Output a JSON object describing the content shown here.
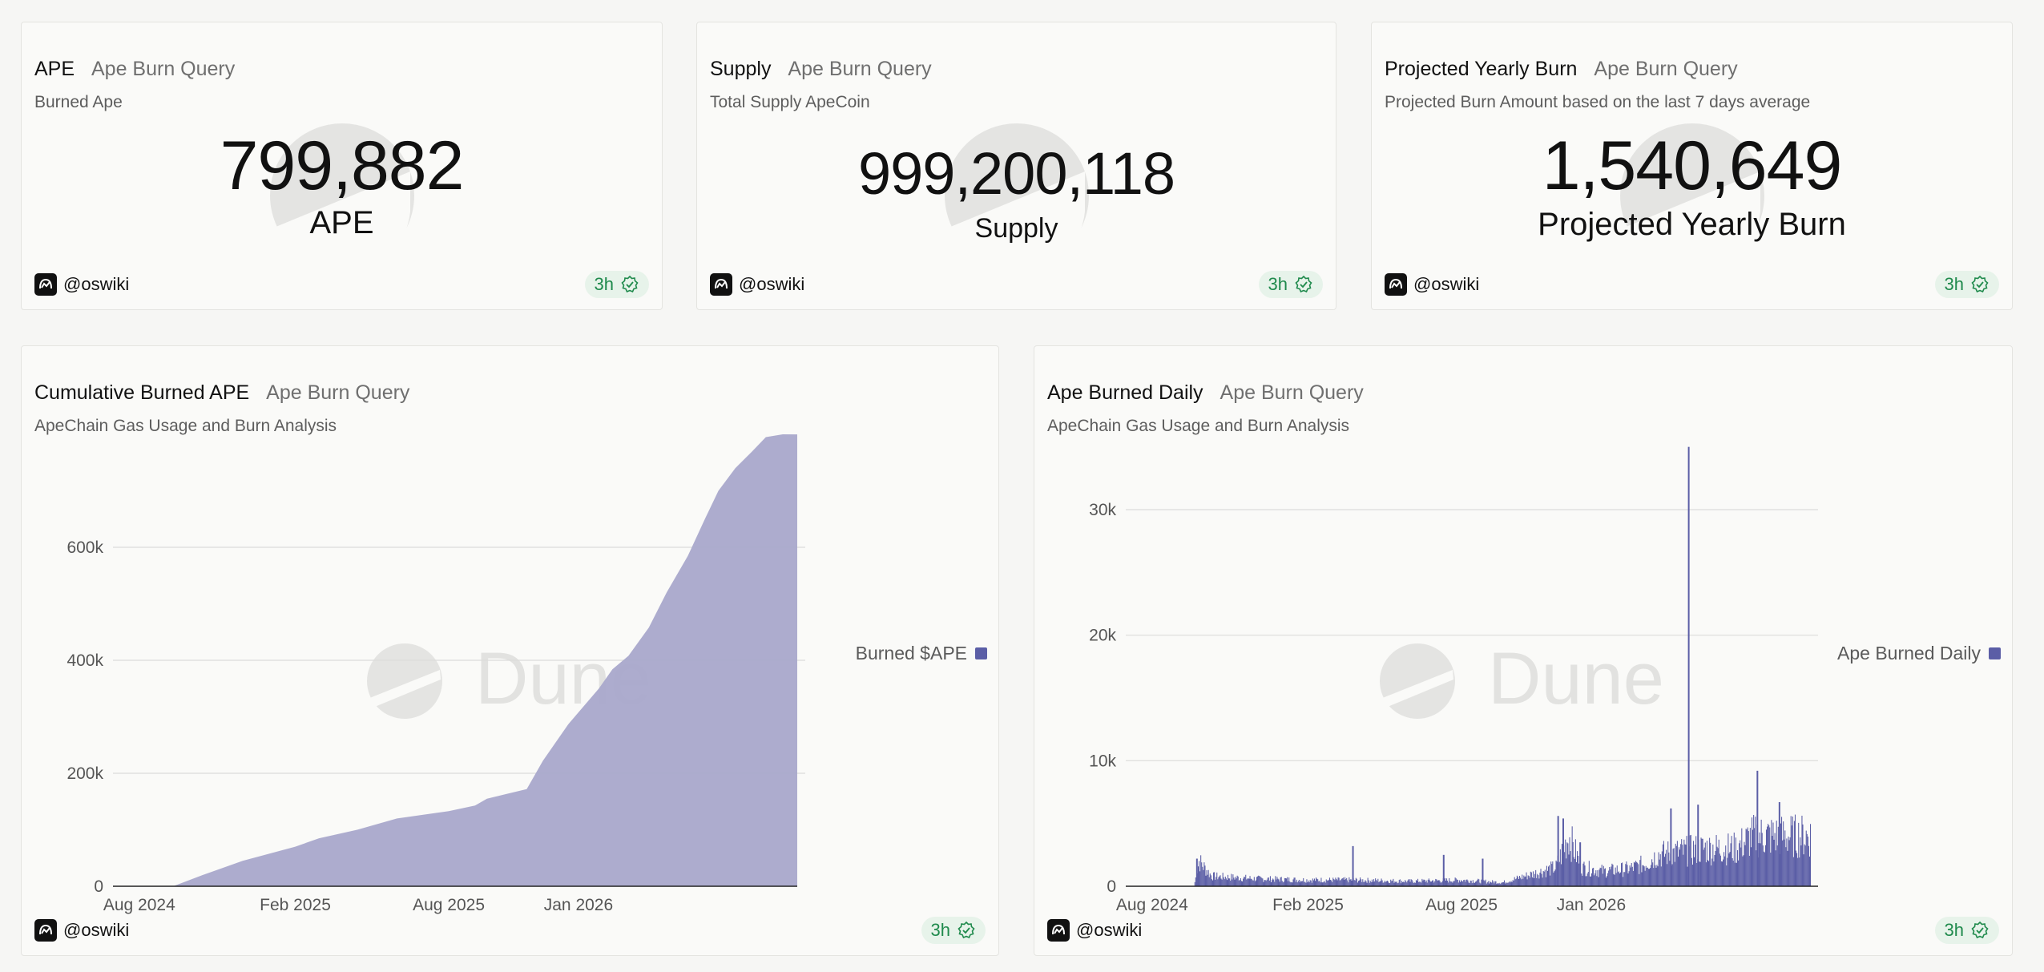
{
  "author": "@oswiki",
  "age": "3h",
  "counters": [
    {
      "title": "APE",
      "query": "Ape Burn Query",
      "description": "Burned Ape",
      "value": "799,882",
      "label": "APE"
    },
    {
      "title": "Supply",
      "query": "Ape Burn Query",
      "description": "Total Supply ApeCoin",
      "value": "999,200,118",
      "label": "Supply"
    },
    {
      "title": "Projected Yearly Burn",
      "query": "Ape Burn Query",
      "description": "Projected Burn Amount based on the last 7 days average",
      "value": "1,540,649",
      "label": "Projected Yearly Burn"
    }
  ],
  "charts": [
    {
      "title": "Cumulative Burned APE",
      "query": "Ape Burn Query",
      "description": "ApeChain Gas Usage and Burn Analysis",
      "legend": "Burned $APE",
      "watermark": "Dune"
    },
    {
      "title": "Ape Burned Daily",
      "query": "Ape Burn Query",
      "description": "ApeChain Gas Usage and Burn Analysis",
      "legend": "Ape Burned Daily",
      "watermark": "Dune"
    }
  ],
  "colors": {
    "series": "#5b5ea6",
    "area_fill": "#a9a8cb",
    "badge_text": "#1f8a4c",
    "badge_bg": "#e7f3ea"
  },
  "chart_data": [
    {
      "type": "area",
      "title": "Cumulative Burned APE",
      "x_tick_labels": [
        "Aug 2024",
        "Feb 2025",
        "Aug 2025",
        "Jan 2026"
      ],
      "y_tick_labels": [
        "0",
        "200k",
        "400k",
        "600k"
      ],
      "ylim": [
        0,
        800000
      ],
      "grid": true,
      "legend_position": "right",
      "series": [
        {
          "name": "Burned $APE",
          "color": "#a9a8cb",
          "x": [
            "2024-07-01",
            "2024-09-10",
            "2024-10-15",
            "2024-12-01",
            "2025-02-01",
            "2025-03-01",
            "2025-04-15",
            "2025-06-01",
            "2025-08-01",
            "2025-09-01",
            "2025-09-15",
            "2025-11-01",
            "2025-11-20",
            "2025-12-20",
            "2026-01-25",
            "2026-02-10",
            "2026-03-01",
            "2026-03-25",
            "2026-04-15",
            "2026-05-10",
            "2026-05-30",
            "2026-06-15",
            "2026-07-05",
            "2026-07-25",
            "2026-08-10",
            "2026-08-30",
            "2026-09-16"
          ],
          "y": [
            0,
            0,
            20000,
            45000,
            70000,
            85000,
            100000,
            120000,
            133000,
            143000,
            155000,
            172000,
            222000,
            287000,
            350000,
            384000,
            408000,
            458000,
            520000,
            585000,
            650000,
            700000,
            740000,
            770000,
            795000,
            800000,
            799882
          ]
        }
      ]
    },
    {
      "type": "bar",
      "title": "Ape Burned Daily",
      "x_tick_labels": [
        "Aug 2024",
        "Feb 2025",
        "Aug 2025",
        "Jan 2026"
      ],
      "y_tick_labels": [
        "0",
        "10k",
        "20k",
        "30k"
      ],
      "ylim": [
        0,
        36000
      ],
      "grid": true,
      "legend_position": "right",
      "series": [
        {
          "name": "Ape Burned Daily",
          "color": "#5b5ea6",
          "profile_x": [
            "2024-07-01",
            "2024-09-19",
            "2024-09-25",
            "2024-10-10",
            "2024-12-01",
            "2025-02-01",
            "2025-03-25",
            "2025-06-01",
            "2025-08-01",
            "2025-09-18",
            "2025-11-20",
            "2025-12-05",
            "2025-12-20",
            "2026-01-15",
            "2026-02-15",
            "2026-03-05",
            "2026-03-20",
            "2026-05-15",
            "2026-06-20",
            "2026-07-10",
            "2026-09-16"
          ],
          "profile_y": [
            0,
            0,
            2000,
            800,
            600,
            500,
            500,
            400,
            500,
            300,
            1500,
            4000,
            1500,
            1200,
            1400,
            1800,
            2500,
            3000,
            3000,
            4000,
            4000
          ],
          "spikes": [
            {
              "x": "2024-09-22",
              "y": 2200
            },
            {
              "x": "2025-03-25",
              "y": 3200
            },
            {
              "x": "2025-07-10",
              "y": 2500
            },
            {
              "x": "2025-08-25",
              "y": 2200
            },
            {
              "x": "2025-11-22",
              "y": 5600
            },
            {
              "x": "2025-11-28",
              "y": 5400
            },
            {
              "x": "2025-12-18",
              "y": 3500
            },
            {
              "x": "2026-04-04",
              "y": 6200
            },
            {
              "x": "2026-04-25",
              "y": 35000
            },
            {
              "x": "2026-05-06",
              "y": 6500
            },
            {
              "x": "2026-07-15",
              "y": 9200
            },
            {
              "x": "2026-08-10",
              "y": 6700
            }
          ]
        }
      ]
    }
  ]
}
